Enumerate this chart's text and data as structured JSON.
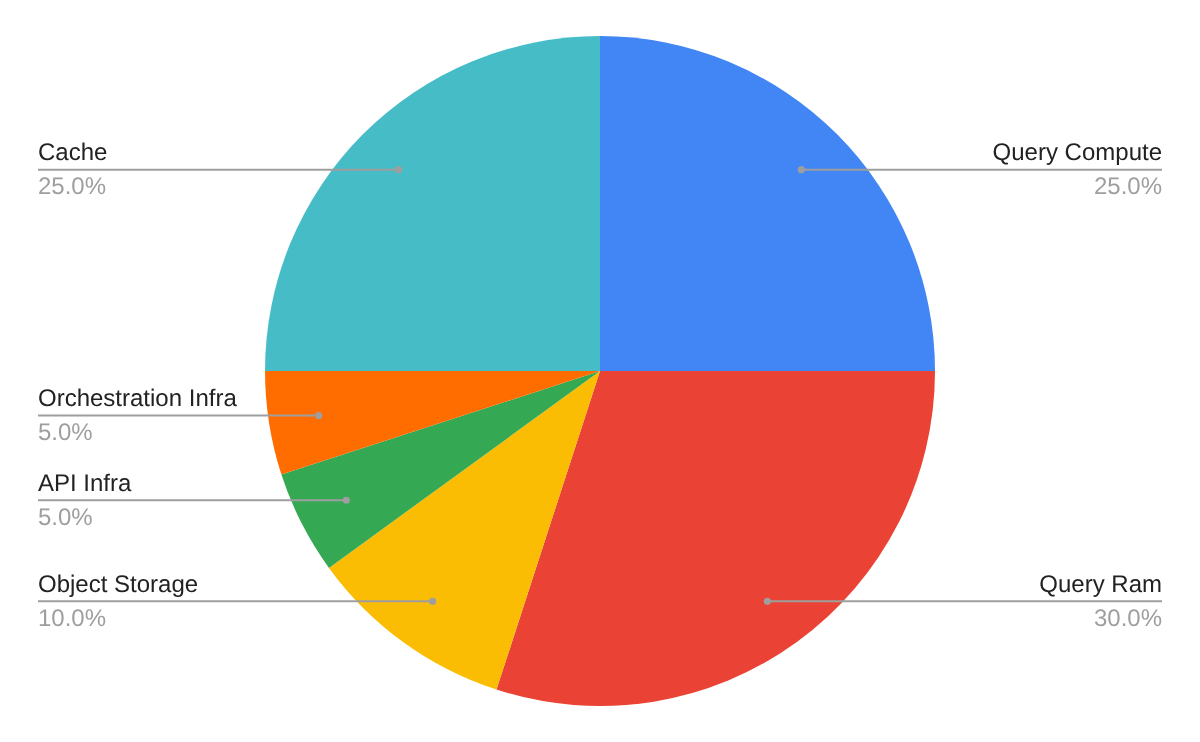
{
  "chart_data": {
    "type": "pie",
    "categories": [
      "Query Compute",
      "Query Ram",
      "Object Storage",
      "API Infra",
      "Orchestration Infra",
      "Cache"
    ],
    "values": [
      25,
      30,
      10,
      5,
      5,
      25
    ],
    "colors": [
      "#4285f4",
      "#ea4335",
      "#fbbc04",
      "#34a853",
      "#ff6d01",
      "#46bdc6"
    ],
    "value_labels": [
      "25.0%",
      "30.0%",
      "10.0%",
      "5.0%",
      "5.0%",
      "25.0%"
    ],
    "legend": false
  }
}
